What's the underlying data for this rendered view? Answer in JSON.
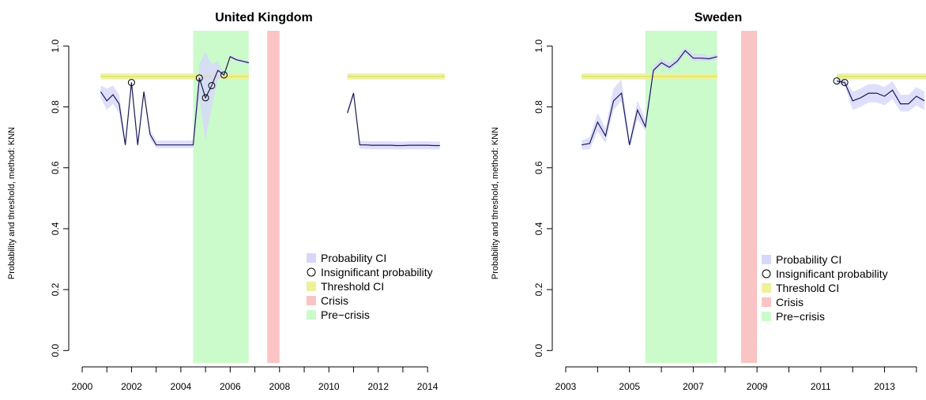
{
  "colors": {
    "probability_ci": "#d7d7fb",
    "line": "#1a1a55",
    "threshold_ci": "#eef09a",
    "threshold_line": "#d9e66a",
    "crisis": "#fbc4c4",
    "pre_crisis": "#cbfbcb",
    "circle": "#000000"
  },
  "chart_data": [
    {
      "type": "line",
      "title": "United Kingdom",
      "ylabel": "Probability and threshold, method: KNN",
      "xlim": [
        2000.0,
        2014.7
      ],
      "ylim": [
        -0.02,
        1.05
      ],
      "x_ticks": [
        2000,
        2001,
        2002,
        2003,
        2004,
        2005,
        2006,
        2007,
        2008,
        2009,
        2010,
        2011,
        2012,
        2013,
        2014
      ],
      "x_tick_labels": [
        "2000",
        "",
        "2002",
        "",
        "2004",
        "",
        "2006",
        "",
        "2008",
        "",
        "2010",
        "",
        "2012",
        "",
        "2014"
      ],
      "y_ticks": [
        0.0,
        0.2,
        0.4,
        0.6,
        0.8,
        1.0
      ],
      "y_tick_labels": [
        "0.0",
        "0.2",
        "0.4",
        "0.6",
        "0.8",
        "1.0"
      ],
      "pre_crisis": [
        2004.5,
        2006.75
      ],
      "crisis": [
        2007.5,
        2008.0
      ],
      "threshold": {
        "x": [
          2000.75,
          2006.75
        ],
        "value": 0.9,
        "ci": [
          0.89,
          0.91
        ]
      },
      "threshold_2": {
        "x": [
          2010.75,
          2014.7
        ],
        "value": 0.9,
        "ci": [
          0.89,
          0.91
        ]
      },
      "series": [
        {
          "segment": 1,
          "x": [
            2000.75,
            2001.0,
            2001.25,
            2001.5,
            2001.75,
            2002.0,
            2002.25,
            2002.5,
            2002.75,
            2003.0,
            2003.25,
            2003.5,
            2003.75,
            2004.0,
            2004.25,
            2004.5,
            2004.75,
            2005.0,
            2005.25,
            2005.5,
            2005.75,
            2006.0,
            2006.25,
            2006.5,
            2006.75
          ],
          "y": [
            0.85,
            0.82,
            0.84,
            0.81,
            0.675,
            0.88,
            0.675,
            0.85,
            0.71,
            0.675,
            0.675,
            0.675,
            0.675,
            0.675,
            0.675,
            0.675,
            0.895,
            0.83,
            0.87,
            0.92,
            0.905,
            0.965,
            0.955,
            0.95,
            0.945
          ],
          "lo": [
            0.83,
            0.79,
            0.81,
            0.78,
            0.665,
            0.87,
            0.665,
            0.84,
            0.695,
            0.665,
            0.665,
            0.665,
            0.665,
            0.665,
            0.665,
            0.665,
            0.83,
            0.69,
            0.8,
            0.89,
            0.9,
            0.96,
            0.95,
            0.945,
            0.94
          ],
          "hi": [
            0.87,
            0.86,
            0.87,
            0.84,
            0.69,
            0.89,
            0.69,
            0.86,
            0.725,
            0.69,
            0.69,
            0.69,
            0.69,
            0.69,
            0.69,
            0.69,
            0.94,
            0.98,
            0.94,
            0.95,
            0.91,
            0.97,
            0.96,
            0.955,
            0.95
          ],
          "insignificant_x": [
            2002.0,
            2004.75,
            2005.0,
            2005.25,
            2005.75
          ],
          "insignificant_y": [
            0.88,
            0.895,
            0.83,
            0.87,
            0.905
          ]
        },
        {
          "segment": 2,
          "x": [
            2010.75,
            2011.0,
            2011.25,
            2011.5,
            2011.75,
            2012.0,
            2012.25,
            2012.5,
            2012.75,
            2013.0,
            2013.25,
            2013.5,
            2013.75,
            2014.0,
            2014.25,
            2014.5
          ],
          "y": [
            0.78,
            0.845,
            0.675,
            0.675,
            0.674,
            0.674,
            0.674,
            0.674,
            0.673,
            0.673,
            0.674,
            0.674,
            0.674,
            0.674,
            0.673,
            0.673
          ],
          "lo": [
            0.77,
            0.835,
            0.662,
            0.662,
            0.661,
            0.661,
            0.661,
            0.661,
            0.66,
            0.66,
            0.661,
            0.661,
            0.661,
            0.661,
            0.66,
            0.66
          ],
          "hi": [
            0.79,
            0.855,
            0.688,
            0.688,
            0.687,
            0.687,
            0.687,
            0.687,
            0.686,
            0.686,
            0.687,
            0.687,
            0.687,
            0.687,
            0.686,
            0.686
          ],
          "insignificant_x": [],
          "insignificant_y": []
        }
      ],
      "legend": {
        "placement": "bottom-right",
        "items": [
          {
            "label": "Probability CI",
            "kind": "fill-probability"
          },
          {
            "label": "Insignificant probability",
            "kind": "circle"
          },
          {
            "label": "Threshold CI",
            "kind": "fill-threshold"
          },
          {
            "label": "Crisis",
            "kind": "fill-crisis"
          },
          {
            "label": "Pre−crisis",
            "kind": "fill-precrisis"
          }
        ]
      }
    },
    {
      "type": "line",
      "title": "Sweden",
      "ylabel": "Probability and threshold, method: KNN",
      "xlim": [
        2003.0,
        2014.3
      ],
      "ylim": [
        -0.02,
        1.05
      ],
      "x_ticks": [
        2003,
        2004,
        2005,
        2006,
        2007,
        2008,
        2009,
        2010,
        2011,
        2012,
        2013,
        2014
      ],
      "x_tick_labels": [
        "2003",
        "",
        "2005",
        "",
        "2007",
        "",
        "2009",
        "",
        "2011",
        "",
        "2013",
        ""
      ],
      "y_ticks": [
        0.0,
        0.2,
        0.4,
        0.6,
        0.8,
        1.0
      ],
      "y_tick_labels": [
        "0.0",
        "0.2",
        "0.4",
        "0.6",
        "0.8",
        "1.0"
      ],
      "pre_crisis": [
        2005.5,
        2007.75
      ],
      "crisis": [
        2008.5,
        2009.0
      ],
      "threshold": {
        "x": [
          2003.5,
          2007.75
        ],
        "value": 0.9,
        "ci": [
          0.89,
          0.91
        ]
      },
      "threshold_2": {
        "x": [
          2011.5,
          2014.3
        ],
        "value": 0.9,
        "ci": [
          0.89,
          0.91
        ]
      },
      "series": [
        {
          "segment": 1,
          "x": [
            2003.5,
            2003.75,
            2004.0,
            2004.25,
            2004.5,
            2004.75,
            2005.0,
            2005.25,
            2005.5,
            2005.75,
            2006.0,
            2006.25,
            2006.5,
            2006.75,
            2007.0,
            2007.25,
            2007.5,
            2007.75
          ],
          "y": [
            0.675,
            0.68,
            0.75,
            0.705,
            0.82,
            0.845,
            0.675,
            0.79,
            0.735,
            0.92,
            0.945,
            0.93,
            0.95,
            0.985,
            0.96,
            0.96,
            0.958,
            0.965
          ],
          "lo": [
            0.66,
            0.66,
            0.72,
            0.68,
            0.79,
            0.82,
            0.66,
            0.76,
            0.72,
            0.91,
            0.935,
            0.92,
            0.94,
            0.975,
            0.95,
            0.95,
            0.95,
            0.955
          ],
          "hi": [
            0.69,
            0.7,
            0.78,
            0.73,
            0.86,
            0.89,
            0.69,
            0.82,
            0.76,
            0.935,
            0.96,
            0.945,
            0.965,
            0.995,
            0.975,
            0.975,
            0.968,
            0.975
          ],
          "insignificant_x": [],
          "insignificant_y": []
        },
        {
          "segment": 2,
          "x": [
            2011.5,
            2011.75,
            2012.0,
            2012.25,
            2012.5,
            2012.75,
            2013.0,
            2013.25,
            2013.5,
            2013.75,
            2014.0,
            2014.25
          ],
          "y": [
            0.885,
            0.88,
            0.82,
            0.83,
            0.845,
            0.845,
            0.835,
            0.855,
            0.81,
            0.81,
            0.835,
            0.82
          ],
          "lo": [
            0.875,
            0.87,
            0.79,
            0.8,
            0.815,
            0.815,
            0.805,
            0.825,
            0.785,
            0.785,
            0.805,
            0.79
          ],
          "hi": [
            0.895,
            0.89,
            0.85,
            0.86,
            0.875,
            0.875,
            0.865,
            0.885,
            0.84,
            0.84,
            0.865,
            0.85
          ],
          "insignificant_x": [
            2011.5,
            2011.75
          ],
          "insignificant_y": [
            0.885,
            0.88
          ]
        }
      ],
      "legend": {
        "placement": "bottom-right",
        "items": [
          {
            "label": "Probability CI",
            "kind": "fill-probability"
          },
          {
            "label": "Insignificant probability",
            "kind": "circle"
          },
          {
            "label": "Threshold CI",
            "kind": "fill-threshold"
          },
          {
            "label": "Crisis",
            "kind": "fill-crisis"
          },
          {
            "label": "Pre−crisis",
            "kind": "fill-precrisis"
          }
        ]
      }
    }
  ]
}
